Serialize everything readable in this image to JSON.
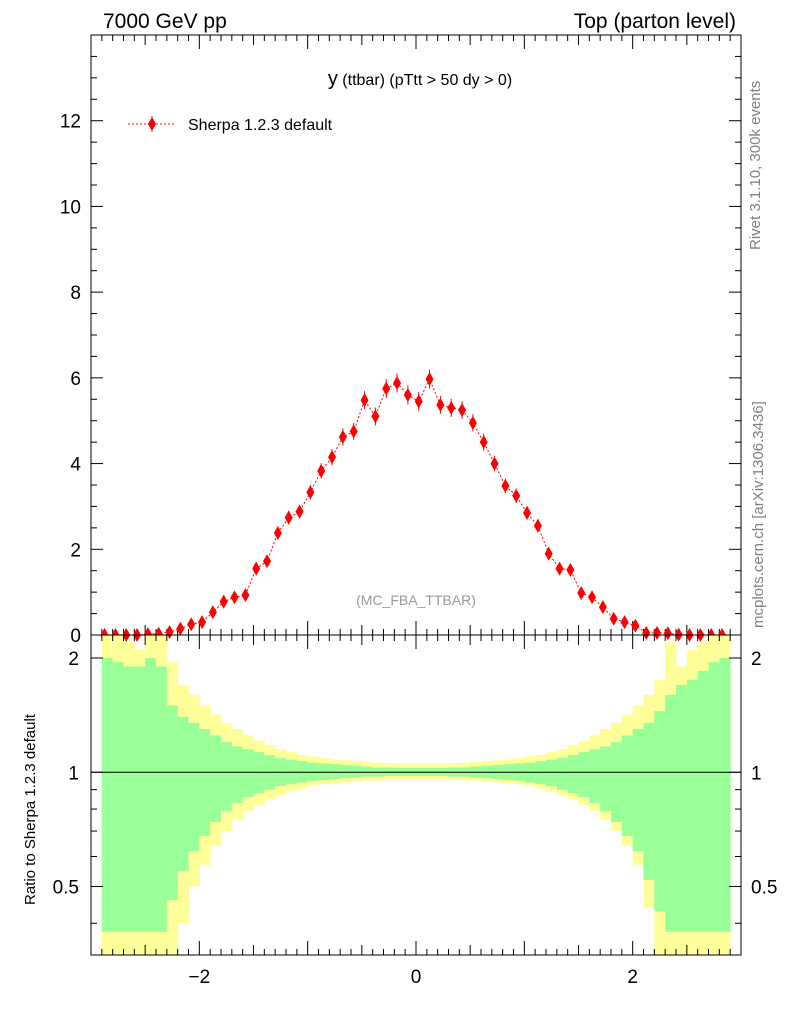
{
  "header": {
    "left": "7000 GeV pp",
    "right": "Top (parton level)"
  },
  "side_labels": {
    "rivet": "Rivet 3.1.10,  300k events",
    "mcplots": "mcplots.cern.ch [arXiv:1306.3436]"
  },
  "chart_data": [
    {
      "type": "scatter",
      "title_main": "y",
      "title_sub": "(ttbar) (pTtt > 50 dy > 0)",
      "watermark": "(MC_FBA_TTBAR)",
      "legend": [
        {
          "name": "Sherpa 1.2.3 default",
          "color": "#ff0000",
          "placement": "top-left"
        }
      ],
      "xlim": [
        -3.0,
        3.0
      ],
      "ylim": [
        0,
        14
      ],
      "yticks": [
        0,
        2,
        4,
        6,
        8,
        10,
        12
      ],
      "ytick_labels": [
        "0",
        "2",
        "4",
        "6",
        "8",
        "10",
        "12"
      ],
      "series": [
        {
          "name": "Sherpa 1.2.3 default",
          "color": "#ff0000",
          "x": [
            -2.875,
            -2.775,
            -2.675,
            -2.575,
            -2.475,
            -2.375,
            -2.275,
            -2.175,
            -2.075,
            -1.975,
            -1.875,
            -1.775,
            -1.675,
            -1.575,
            -1.475,
            -1.375,
            -1.275,
            -1.175,
            -1.075,
            -0.975,
            -0.875,
            -0.775,
            -0.675,
            -0.575,
            -0.475,
            -0.375,
            -0.275,
            -0.175,
            -0.075,
            0.025,
            0.125,
            0.225,
            0.325,
            0.425,
            0.525,
            0.625,
            0.725,
            0.825,
            0.925,
            1.025,
            1.125,
            1.225,
            1.325,
            1.425,
            1.525,
            1.625,
            1.725,
            1.825,
            1.925,
            2.025,
            2.125,
            2.225,
            2.325,
            2.425,
            2.525,
            2.625,
            2.725,
            2.825
          ],
          "y": [
            0.0,
            0.0,
            0.0,
            0.0,
            0.02,
            0.03,
            0.07,
            0.15,
            0.25,
            0.3,
            0.53,
            0.78,
            0.88,
            0.93,
            1.55,
            1.72,
            2.38,
            2.74,
            2.88,
            3.33,
            3.83,
            4.15,
            4.62,
            4.75,
            5.48,
            5.1,
            5.75,
            5.88,
            5.6,
            5.45,
            5.97,
            5.37,
            5.3,
            5.25,
            4.95,
            4.5,
            4.0,
            3.48,
            3.25,
            2.85,
            2.55,
            1.9,
            1.55,
            1.52,
            0.98,
            0.88,
            0.65,
            0.38,
            0.3,
            0.22,
            0.05,
            0.05,
            0.04,
            0.01,
            0.0,
            0.0,
            0.0,
            0.0
          ],
          "yerr": [
            0.02,
            0.02,
            0.02,
            0.02,
            0.03,
            0.04,
            0.05,
            0.06,
            0.07,
            0.08,
            0.09,
            0.1,
            0.1,
            0.11,
            0.13,
            0.13,
            0.15,
            0.16,
            0.16,
            0.17,
            0.18,
            0.19,
            0.2,
            0.2,
            0.21,
            0.21,
            0.22,
            0.22,
            0.22,
            0.22,
            0.22,
            0.21,
            0.21,
            0.21,
            0.2,
            0.2,
            0.18,
            0.17,
            0.17,
            0.16,
            0.15,
            0.13,
            0.12,
            0.12,
            0.1,
            0.1,
            0.09,
            0.07,
            0.07,
            0.06,
            0.04,
            0.04,
            0.03,
            0.02,
            0.02,
            0.02,
            0.02,
            0.02
          ]
        }
      ]
    },
    {
      "type": "area",
      "ylabel": "Ratio to Sherpa 1.2.3 default",
      "xlim": [
        -3.0,
        3.0
      ],
      "ylim": [
        0.33,
        2.3
      ],
      "yscale": "log",
      "xticks": [
        -2,
        0,
        2
      ],
      "xtick_labels": [
        "−2",
        "0",
        "2"
      ],
      "yticks": [
        0.5,
        1,
        2
      ],
      "ytick_labels": [
        "0.5",
        "1",
        "2"
      ],
      "reference_line": 1,
      "band_colors": {
        "outer": "#ffff99",
        "inner": "#99ff99"
      },
      "band_x_edges": [
        -2.9,
        -2.8,
        -2.7,
        -2.6,
        -2.5,
        -2.4,
        -2.3,
        -2.2,
        -2.1,
        -2.0,
        -1.9,
        -1.8,
        -1.7,
        -1.6,
        -1.5,
        -1.4,
        -1.3,
        -1.2,
        -1.1,
        -1.0,
        -0.9,
        -0.8,
        -0.7,
        -0.6,
        -0.5,
        -0.4,
        -0.3,
        -0.2,
        -0.1,
        0.0,
        0.1,
        0.2,
        0.3,
        0.4,
        0.5,
        0.6,
        0.7,
        0.8,
        0.9,
        1.0,
        1.1,
        1.2,
        1.3,
        1.4,
        1.5,
        1.6,
        1.7,
        1.8,
        1.9,
        2.0,
        2.1,
        2.2,
        2.3,
        2.4,
        2.5,
        2.6,
        2.7,
        2.8,
        2.9
      ],
      "band_inner": [
        0.38,
        0.38,
        0.38,
        0.38,
        0.38,
        0.38,
        0.46,
        0.55,
        0.62,
        0.68,
        0.74,
        0.79,
        0.83,
        0.86,
        0.88,
        0.9,
        0.92,
        0.93,
        0.94,
        0.95,
        0.955,
        0.96,
        0.965,
        0.97,
        0.975,
        0.975,
        0.978,
        0.978,
        0.978,
        0.978,
        0.978,
        0.978,
        0.975,
        0.975,
        0.97,
        0.965,
        0.96,
        0.955,
        0.95,
        0.94,
        0.93,
        0.92,
        0.9,
        0.88,
        0.86,
        0.83,
        0.79,
        0.74,
        0.68,
        0.62,
        0.52,
        0.43,
        0.38,
        0.38,
        0.38,
        0.38,
        0.38,
        0.38
      ],
      "band_outer": [
        0.33,
        0.33,
        0.33,
        0.33,
        0.33,
        0.33,
        0.33,
        0.4,
        0.5,
        0.57,
        0.64,
        0.7,
        0.75,
        0.79,
        0.82,
        0.85,
        0.87,
        0.89,
        0.905,
        0.92,
        0.93,
        0.935,
        0.94,
        0.945,
        0.95,
        0.952,
        0.955,
        0.955,
        0.956,
        0.956,
        0.956,
        0.955,
        0.955,
        0.952,
        0.95,
        0.945,
        0.94,
        0.935,
        0.93,
        0.92,
        0.905,
        0.89,
        0.87,
        0.85,
        0.82,
        0.79,
        0.75,
        0.7,
        0.64,
        0.57,
        0.44,
        0.33,
        0.33,
        0.33,
        0.33,
        0.33,
        0.33,
        0.33
      ],
      "band_inner_upper": [
        2.0,
        1.95,
        1.9,
        1.9,
        2.0,
        1.9,
        1.5,
        1.4,
        1.35,
        1.3,
        1.25,
        1.2,
        1.17,
        1.15,
        1.13,
        1.11,
        1.09,
        1.08,
        1.07,
        1.06,
        1.055,
        1.05,
        1.045,
        1.04,
        1.035,
        1.03,
        1.03,
        1.028,
        1.028,
        1.028,
        1.028,
        1.028,
        1.03,
        1.03,
        1.035,
        1.04,
        1.045,
        1.05,
        1.055,
        1.06,
        1.07,
        1.08,
        1.09,
        1.11,
        1.13,
        1.15,
        1.17,
        1.2,
        1.25,
        1.3,
        1.35,
        1.45,
        1.6,
        1.7,
        1.75,
        1.85,
        1.95,
        2.0
      ],
      "band_outer_upper": [
        2.3,
        2.3,
        2.2,
        2.1,
        2.3,
        2.3,
        1.95,
        1.7,
        1.6,
        1.5,
        1.42,
        1.35,
        1.3,
        1.25,
        1.21,
        1.18,
        1.15,
        1.13,
        1.11,
        1.1,
        1.09,
        1.08,
        1.075,
        1.07,
        1.065,
        1.06,
        1.058,
        1.056,
        1.055,
        1.055,
        1.055,
        1.056,
        1.058,
        1.06,
        1.065,
        1.07,
        1.075,
        1.08,
        1.09,
        1.1,
        1.11,
        1.13,
        1.15,
        1.18,
        1.21,
        1.25,
        1.3,
        1.35,
        1.42,
        1.5,
        1.6,
        1.75,
        2.2,
        1.9,
        2.1,
        2.2,
        2.3,
        2.3
      ]
    }
  ]
}
